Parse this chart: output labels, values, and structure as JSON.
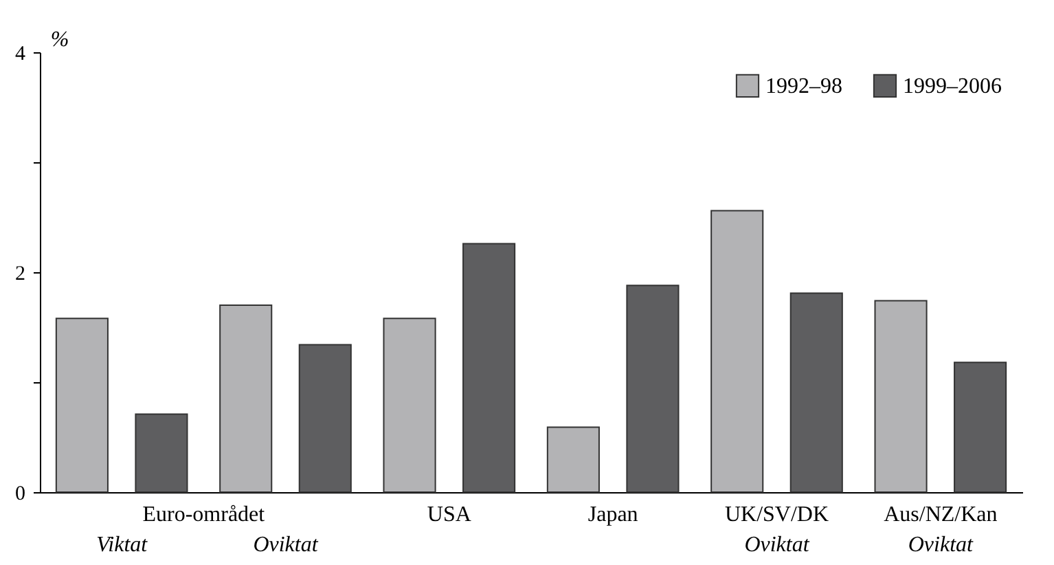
{
  "chart_data": {
    "type": "bar",
    "ylabel": "%",
    "categories": [
      "Viktat",
      "Oviktat",
      "USA",
      "Japan",
      "UK/SV/DK\nOviktat",
      "Aus/NZ/Kan\nOviktat"
    ],
    "annotations": [
      "Euro-området"
    ],
    "series": [
      {
        "name": "1992–98",
        "color": "#b3b3b5",
        "values": [
          1.58,
          1.7,
          1.58,
          0.59,
          2.56,
          1.74
        ]
      },
      {
        "name": "1999–2006",
        "color": "#5e5e60",
        "values": [
          0.71,
          1.34,
          2.26,
          1.88,
          1.81,
          1.18
        ]
      }
    ],
    "ylim": [
      0,
      4
    ],
    "yticks": [
      0,
      {
        "value": 1,
        "label": null
      },
      2,
      {
        "value": 3,
        "label": null
      },
      4
    ],
    "legend": "top right",
    "grid": false
  }
}
